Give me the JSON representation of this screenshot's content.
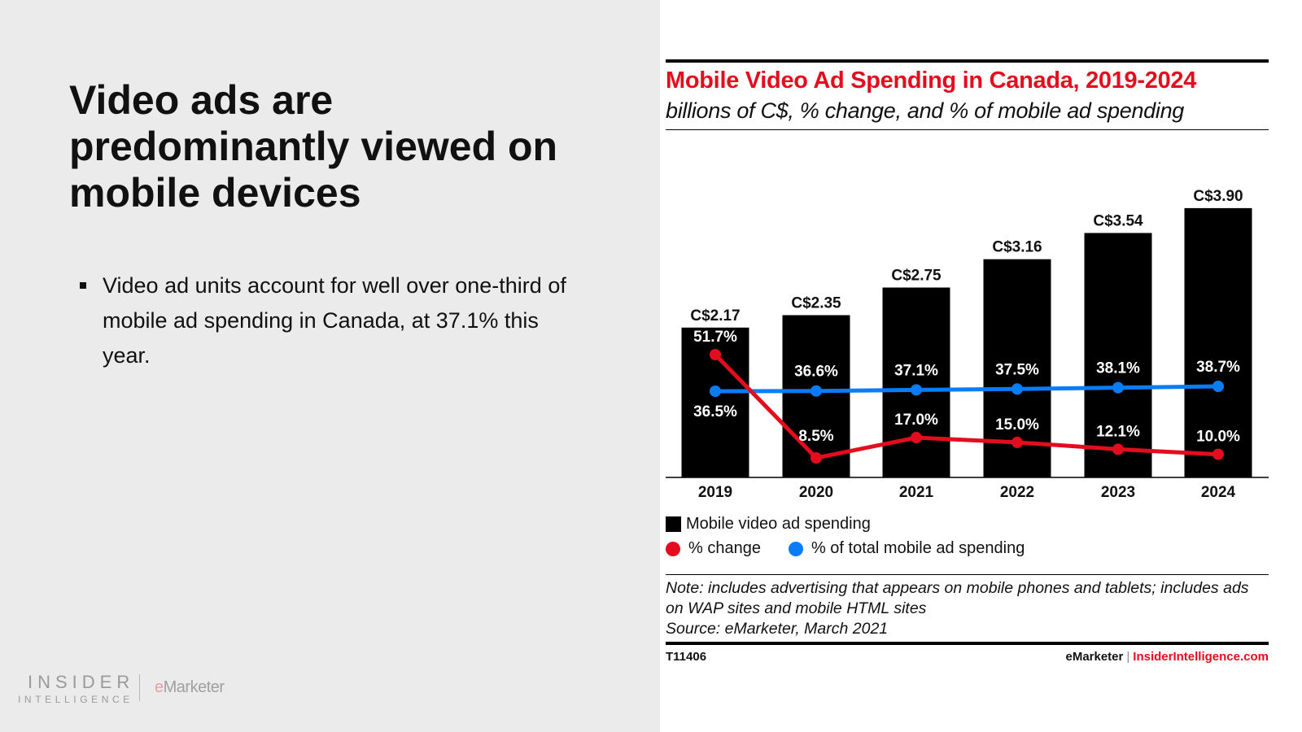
{
  "slide": {
    "title": "Video ads are predominantly viewed on mobile devices",
    "bullets": [
      "Video ad units account for well over one-third of mobile ad spending in Canada, at 37.1% this year."
    ],
    "logo": {
      "insider_top": "INSIDER",
      "insider_bottom": "INTELLIGENCE",
      "emarketer_e": "e",
      "emarketer_rest": "Marketer"
    }
  },
  "colors": {
    "brand_red": "#e30d1e",
    "bar": "#000000",
    "change_line": "#e30d1e",
    "share_line": "#0a7cf5"
  },
  "chart_data": {
    "type": "bar",
    "title": "Mobile Video Ad Spending in Canada, 2019-2024",
    "subtitle": "billions of C$, % change, and % of mobile ad spending",
    "xlabel": "",
    "ylabel": "",
    "categories": [
      "2019",
      "2020",
      "2021",
      "2022",
      "2023",
      "2024"
    ],
    "grid": false,
    "series": [
      {
        "name": "Mobile video ad spending",
        "type": "bar",
        "unit": "billions of C$",
        "values": [
          2.17,
          2.35,
          2.75,
          3.16,
          3.54,
          3.9
        ],
        "labels": [
          "C$2.17",
          "C$2.35",
          "C$2.75",
          "C$3.16",
          "C$3.54",
          "C$3.90"
        ]
      },
      {
        "name": "% change",
        "type": "line",
        "unit": "%",
        "values": [
          51.7,
          8.5,
          17.0,
          15.0,
          12.1,
          10.0
        ],
        "labels": [
          "51.7%",
          "8.5%",
          "17.0%",
          "15.0%",
          "12.1%",
          "10.0%"
        ]
      },
      {
        "name": "% of total mobile ad spending",
        "type": "line",
        "unit": "%",
        "values": [
          36.5,
          36.6,
          37.1,
          37.5,
          38.1,
          38.7
        ],
        "labels": [
          "36.5%",
          "36.6%",
          "37.1%",
          "37.5%",
          "38.1%",
          "38.7%"
        ]
      }
    ],
    "legend": {
      "placement": "bottom-left",
      "bar_label": "Mobile video ad spending",
      "change_label": "% change",
      "share_label": "% of total mobile ad spending"
    },
    "note": "Note: includes advertising that appears on mobile phones and tablets; includes ads on WAP sites and mobile HTML sites",
    "source": "Source: eMarketer, March 2021",
    "chart_id": "T11406",
    "footer_brand_1": "eMarketer",
    "footer_sep": "|",
    "footer_brand_2": "InsiderIntelligence.com"
  }
}
